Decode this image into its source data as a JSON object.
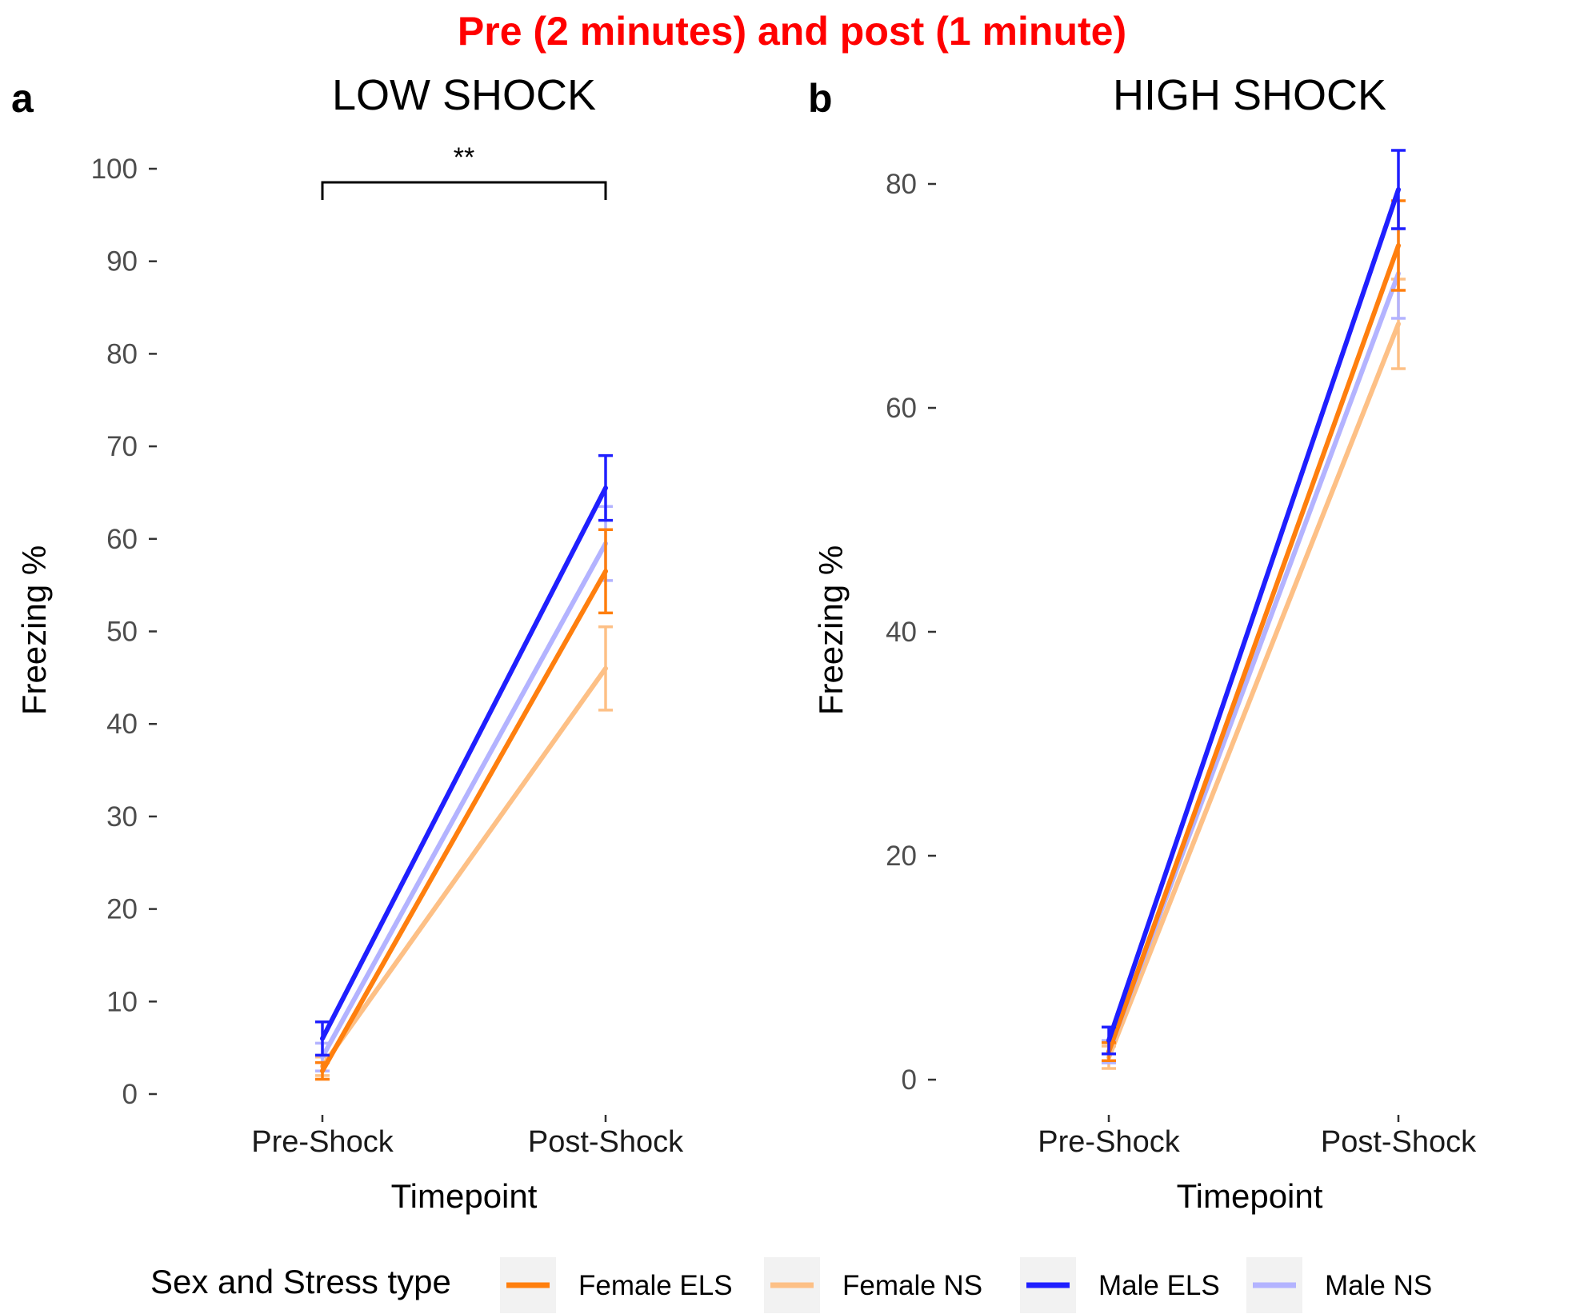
{
  "figure": {
    "title": "Pre (2 minutes) and post (1 minute)",
    "title_color": "#ff0000",
    "legend_title": "Sex and Stress type",
    "series": [
      {
        "name": "Female ELS",
        "color": "#ff7f0e"
      },
      {
        "name": "Female NS",
        "color": "#fdc086"
      },
      {
        "name": "Male ELS",
        "color": "#1f1fff"
      },
      {
        "name": "Male NS",
        "color": "#b3b3ff"
      }
    ]
  },
  "chart_data": [
    {
      "type": "line",
      "panel_letter": "a",
      "title": "LOW SHOCK",
      "xlabel": "Timepoint",
      "ylabel": "Freezing %",
      "categories": [
        "Pre-Shock",
        "Post-Shock"
      ],
      "ylim": [
        0,
        100
      ],
      "yticks": [
        "0",
        "10",
        "20",
        "30",
        "40",
        "50",
        "60",
        "70",
        "80",
        "90",
        "100"
      ],
      "significance": "**",
      "series": [
        {
          "name": "Female ELS",
          "values": [
            2.5,
            56.5
          ],
          "errors": [
            0.9,
            4.5
          ]
        },
        {
          "name": "Female NS",
          "values": [
            3.0,
            46.0
          ],
          "errors": [
            1.0,
            4.5
          ]
        },
        {
          "name": "Male ELS",
          "values": [
            6.0,
            65.5
          ],
          "errors": [
            1.8,
            3.5
          ]
        },
        {
          "name": "Male NS",
          "values": [
            4.0,
            59.5
          ],
          "errors": [
            1.5,
            4.0
          ]
        }
      ]
    },
    {
      "type": "line",
      "panel_letter": "b",
      "title": "HIGH SHOCK",
      "xlabel": "Timepoint",
      "ylabel": "Freezing %",
      "categories": [
        "Pre-Shock",
        "Post-Shock"
      ],
      "ylim": [
        0,
        80
      ],
      "yticks": [
        "0",
        "20",
        "40",
        "60",
        "80"
      ],
      "series": [
        {
          "name": "Female ELS",
          "values": [
            2.5,
            74.5
          ],
          "errors": [
            0.8,
            4.0
          ]
        },
        {
          "name": "Female NS",
          "values": [
            2.0,
            67.5
          ],
          "errors": [
            1.0,
            4.0
          ]
        },
        {
          "name": "Male ELS",
          "values": [
            3.5,
            79.5
          ],
          "errors": [
            1.2,
            3.5
          ]
        },
        {
          "name": "Male NS",
          "values": [
            2.5,
            72.0
          ],
          "errors": [
            1.0,
            4.0
          ]
        }
      ]
    }
  ]
}
